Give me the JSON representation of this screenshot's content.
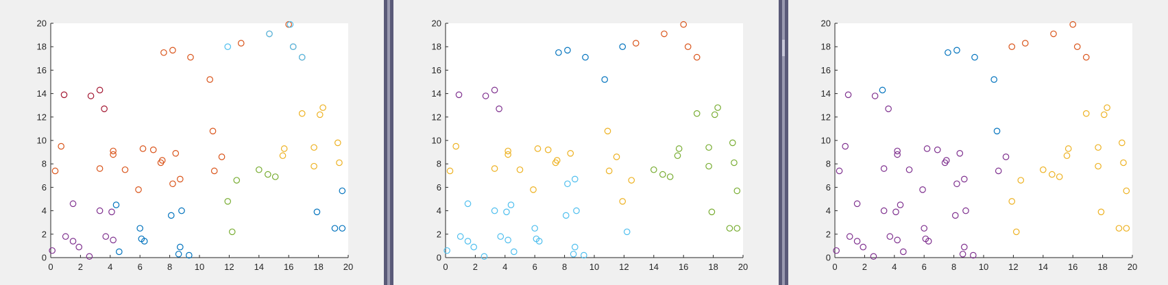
{
  "colors": {
    "purple": "#7E2F8E",
    "red": "#A2142F",
    "orange": "#D95319",
    "blue": "#0072BD",
    "cyan": "#4DBEEE",
    "yellow": "#EDB120",
    "green": "#77AC30"
  },
  "chart_data": [
    {
      "type": "scatter",
      "title": "",
      "xlabel": "",
      "ylabel": "",
      "xlim": [
        0,
        20
      ],
      "ylim": [
        0,
        20
      ],
      "xticks": [
        "0",
        "2",
        "4",
        "6",
        "8",
        "10",
        "12",
        "14",
        "16",
        "18",
        "20"
      ],
      "yticks": [
        "0",
        "2",
        "4",
        "6",
        "8",
        "10",
        "12",
        "14",
        "16",
        "18",
        "20"
      ],
      "grid": false,
      "series": [
        {
          "color": "purple",
          "points": [
            [
              0.1,
              0.6
            ],
            [
              1.0,
              1.8
            ],
            [
              1.5,
              4.6
            ],
            [
              1.5,
              1.4
            ],
            [
              1.9,
              0.9
            ],
            [
              2.6,
              0.1
            ],
            [
              3.3,
              4.0
            ],
            [
              3.7,
              1.8
            ],
            [
              4.1,
              3.9
            ],
            [
              4.2,
              1.5
            ]
          ]
        },
        {
          "color": "red",
          "points": [
            [
              0.9,
              13.9
            ],
            [
              2.7,
              13.8
            ],
            [
              3.3,
              14.3
            ],
            [
              3.6,
              12.7
            ]
          ]
        },
        {
          "color": "orange",
          "points": [
            [
              0.3,
              7.4
            ],
            [
              0.7,
              9.5
            ],
            [
              3.3,
              7.6
            ],
            [
              4.2,
              9.1
            ],
            [
              4.2,
              8.8
            ],
            [
              5.0,
              7.5
            ],
            [
              5.9,
              5.8
            ],
            [
              6.2,
              9.3
            ],
            [
              6.9,
              9.2
            ],
            [
              7.4,
              8.1
            ],
            [
              7.5,
              8.3
            ],
            [
              7.6,
              17.5
            ],
            [
              8.2,
              17.7
            ],
            [
              8.2,
              6.3
            ],
            [
              8.4,
              8.9
            ],
            [
              8.7,
              6.7
            ],
            [
              9.4,
              17.1
            ],
            [
              10.7,
              15.2
            ],
            [
              10.9,
              10.8
            ],
            [
              11.0,
              7.4
            ],
            [
              11.5,
              8.6
            ],
            [
              12.8,
              18.3
            ],
            [
              14.7,
              19.1
            ],
            [
              16.0,
              19.9
            ],
            [
              16.3,
              18.0
            ],
            [
              16.9,
              17.1
            ]
          ]
        },
        {
          "color": "blue",
          "points": [
            [
              4.4,
              4.5
            ],
            [
              4.6,
              0.5
            ],
            [
              6.0,
              2.5
            ],
            [
              6.1,
              1.6
            ],
            [
              6.3,
              1.4
            ],
            [
              8.1,
              3.6
            ],
            [
              8.6,
              0.3
            ],
            [
              8.7,
              0.9
            ],
            [
              8.8,
              4.0
            ],
            [
              9.3,
              0.2
            ],
            [
              17.9,
              3.9
            ],
            [
              19.1,
              2.5
            ],
            [
              19.6,
              2.5
            ],
            [
              19.6,
              5.7
            ]
          ]
        },
        {
          "color": "cyan",
          "points": [
            [
              11.9,
              18.0
            ],
            [
              14.7,
              19.1
            ],
            [
              16.1,
              19.9
            ],
            [
              16.3,
              18.0
            ],
            [
              16.9,
              17.1
            ]
          ]
        },
        {
          "color": "yellow",
          "points": [
            [
              15.6,
              8.7
            ],
            [
              15.7,
              9.3
            ],
            [
              16.9,
              12.3
            ],
            [
              17.7,
              7.8
            ],
            [
              17.7,
              9.4
            ],
            [
              18.1,
              12.2
            ],
            [
              18.3,
              12.8
            ],
            [
              19.3,
              9.8
            ],
            [
              19.4,
              8.1
            ]
          ]
        },
        {
          "color": "green",
          "points": [
            [
              11.9,
              4.8
            ],
            [
              12.2,
              2.2
            ],
            [
              12.5,
              6.6
            ],
            [
              14.0,
              7.5
            ],
            [
              14.6,
              7.1
            ],
            [
              15.1,
              6.9
            ]
          ]
        }
      ]
    },
    {
      "type": "scatter",
      "title": "",
      "xlabel": "",
      "ylabel": "",
      "xlim": [
        0,
        20
      ],
      "ylim": [
        0,
        20
      ],
      "xticks": [
        "0",
        "2",
        "4",
        "6",
        "8",
        "10",
        "12",
        "14",
        "16",
        "18",
        "20"
      ],
      "yticks": [
        "0",
        "2",
        "4",
        "6",
        "8",
        "10",
        "12",
        "14",
        "16",
        "18",
        "20"
      ],
      "grid": false,
      "series": [
        {
          "color": "purple",
          "points": [
            [
              0.9,
              13.9
            ],
            [
              2.7,
              13.8
            ],
            [
              3.3,
              14.3
            ],
            [
              3.6,
              12.7
            ]
          ]
        },
        {
          "color": "yellow",
          "points": [
            [
              0.3,
              7.4
            ],
            [
              0.7,
              9.5
            ],
            [
              3.3,
              7.6
            ],
            [
              4.2,
              9.1
            ],
            [
              4.2,
              8.8
            ],
            [
              5.0,
              7.5
            ],
            [
              5.9,
              5.8
            ],
            [
              6.2,
              9.3
            ],
            [
              6.9,
              9.2
            ],
            [
              7.4,
              8.1
            ],
            [
              7.5,
              8.3
            ],
            [
              8.4,
              8.9
            ],
            [
              10.9,
              10.8
            ],
            [
              11.0,
              7.4
            ],
            [
              11.5,
              8.6
            ],
            [
              11.9,
              4.8
            ],
            [
              12.5,
              6.6
            ]
          ]
        },
        {
          "color": "cyan",
          "points": [
            [
              0.1,
              0.6
            ],
            [
              1.0,
              1.8
            ],
            [
              1.5,
              4.6
            ],
            [
              1.5,
              1.4
            ],
            [
              1.9,
              0.9
            ],
            [
              2.6,
              0.1
            ],
            [
              3.3,
              4.0
            ],
            [
              3.7,
              1.8
            ],
            [
              4.1,
              3.9
            ],
            [
              4.2,
              1.5
            ],
            [
              4.4,
              4.5
            ],
            [
              4.6,
              0.5
            ],
            [
              6.0,
              2.5
            ],
            [
              6.1,
              1.6
            ],
            [
              6.3,
              1.4
            ],
            [
              8.1,
              3.6
            ],
            [
              8.2,
              6.3
            ],
            [
              8.6,
              0.3
            ],
            [
              8.7,
              6.7
            ],
            [
              8.7,
              0.9
            ],
            [
              8.8,
              4.0
            ],
            [
              9.3,
              0.2
            ],
            [
              12.2,
              2.2
            ]
          ]
        },
        {
          "color": "blue",
          "points": [
            [
              7.6,
              17.5
            ],
            [
              8.2,
              17.7
            ],
            [
              9.4,
              17.1
            ],
            [
              10.7,
              15.2
            ],
            [
              11.9,
              18.0
            ]
          ]
        },
        {
          "color": "orange",
          "points": [
            [
              12.8,
              18.3
            ],
            [
              14.7,
              19.1
            ],
            [
              16.0,
              19.9
            ],
            [
              16.3,
              18.0
            ],
            [
              16.9,
              17.1
            ]
          ]
        },
        {
          "color": "green",
          "points": [
            [
              14.0,
              7.5
            ],
            [
              14.6,
              7.1
            ],
            [
              15.1,
              6.9
            ],
            [
              15.6,
              8.7
            ],
            [
              15.7,
              9.3
            ],
            [
              16.9,
              12.3
            ],
            [
              17.7,
              7.8
            ],
            [
              17.7,
              9.4
            ],
            [
              17.9,
              3.9
            ],
            [
              18.1,
              12.2
            ],
            [
              18.3,
              12.8
            ],
            [
              19.1,
              2.5
            ],
            [
              19.3,
              9.8
            ],
            [
              19.4,
              8.1
            ],
            [
              19.6,
              5.7
            ],
            [
              19.6,
              2.5
            ]
          ]
        }
      ]
    },
    {
      "type": "scatter",
      "title": "",
      "xlabel": "",
      "ylabel": "",
      "xlim": [
        0,
        20
      ],
      "ylim": [
        0,
        20
      ],
      "xticks": [
        "0",
        "2",
        "4",
        "6",
        "8",
        "10",
        "12",
        "14",
        "16",
        "18",
        "20"
      ],
      "yticks": [
        "0",
        "2",
        "4",
        "6",
        "8",
        "10",
        "12",
        "14",
        "16",
        "18",
        "20"
      ],
      "grid": false,
      "series": [
        {
          "color": "purple",
          "points": [
            [
              0.1,
              0.6
            ],
            [
              0.3,
              7.4
            ],
            [
              0.7,
              9.5
            ],
            [
              0.9,
              13.9
            ],
            [
              1.0,
              1.8
            ],
            [
              1.5,
              4.6
            ],
            [
              1.5,
              1.4
            ],
            [
              1.9,
              0.9
            ],
            [
              2.6,
              0.1
            ],
            [
              2.7,
              13.8
            ],
            [
              3.3,
              7.6
            ],
            [
              3.3,
              4.0
            ],
            [
              3.6,
              12.7
            ],
            [
              3.7,
              1.8
            ],
            [
              4.1,
              3.9
            ],
            [
              4.2,
              9.1
            ],
            [
              4.2,
              8.8
            ],
            [
              4.2,
              1.5
            ],
            [
              4.4,
              4.5
            ],
            [
              4.6,
              0.5
            ],
            [
              5.0,
              7.5
            ],
            [
              5.9,
              5.8
            ],
            [
              6.0,
              2.5
            ],
            [
              6.1,
              1.6
            ],
            [
              6.2,
              9.3
            ],
            [
              6.3,
              1.4
            ],
            [
              6.9,
              9.2
            ],
            [
              7.4,
              8.1
            ],
            [
              7.5,
              8.3
            ],
            [
              8.1,
              3.6
            ],
            [
              8.2,
              6.3
            ],
            [
              8.4,
              8.9
            ],
            [
              8.6,
              0.3
            ],
            [
              8.7,
              6.7
            ],
            [
              8.7,
              0.9
            ],
            [
              8.8,
              4.0
            ],
            [
              9.3,
              0.2
            ],
            [
              11.0,
              7.4
            ],
            [
              11.5,
              8.6
            ]
          ]
        },
        {
          "color": "blue",
          "points": [
            [
              3.2,
              14.3
            ],
            [
              7.6,
              17.5
            ],
            [
              8.2,
              17.7
            ],
            [
              9.4,
              17.1
            ],
            [
              10.7,
              15.2
            ],
            [
              10.9,
              10.8
            ]
          ]
        },
        {
          "color": "orange",
          "points": [
            [
              11.9,
              18.0
            ],
            [
              12.8,
              18.3
            ],
            [
              14.7,
              19.1
            ],
            [
              16.0,
              19.9
            ],
            [
              16.3,
              18.0
            ],
            [
              16.9,
              17.1
            ]
          ]
        },
        {
          "color": "yellow",
          "points": [
            [
              11.9,
              4.8
            ],
            [
              12.2,
              2.2
            ],
            [
              12.5,
              6.6
            ],
            [
              14.0,
              7.5
            ],
            [
              14.6,
              7.1
            ],
            [
              15.1,
              6.9
            ],
            [
              15.6,
              8.7
            ],
            [
              15.7,
              9.3
            ],
            [
              16.9,
              12.3
            ],
            [
              17.7,
              7.8
            ],
            [
              17.7,
              9.4
            ],
            [
              17.9,
              3.9
            ],
            [
              18.1,
              12.2
            ],
            [
              18.3,
              12.8
            ],
            [
              19.1,
              2.5
            ],
            [
              19.3,
              9.8
            ],
            [
              19.4,
              8.1
            ],
            [
              19.6,
              5.7
            ],
            [
              19.6,
              2.5
            ]
          ]
        }
      ]
    }
  ]
}
